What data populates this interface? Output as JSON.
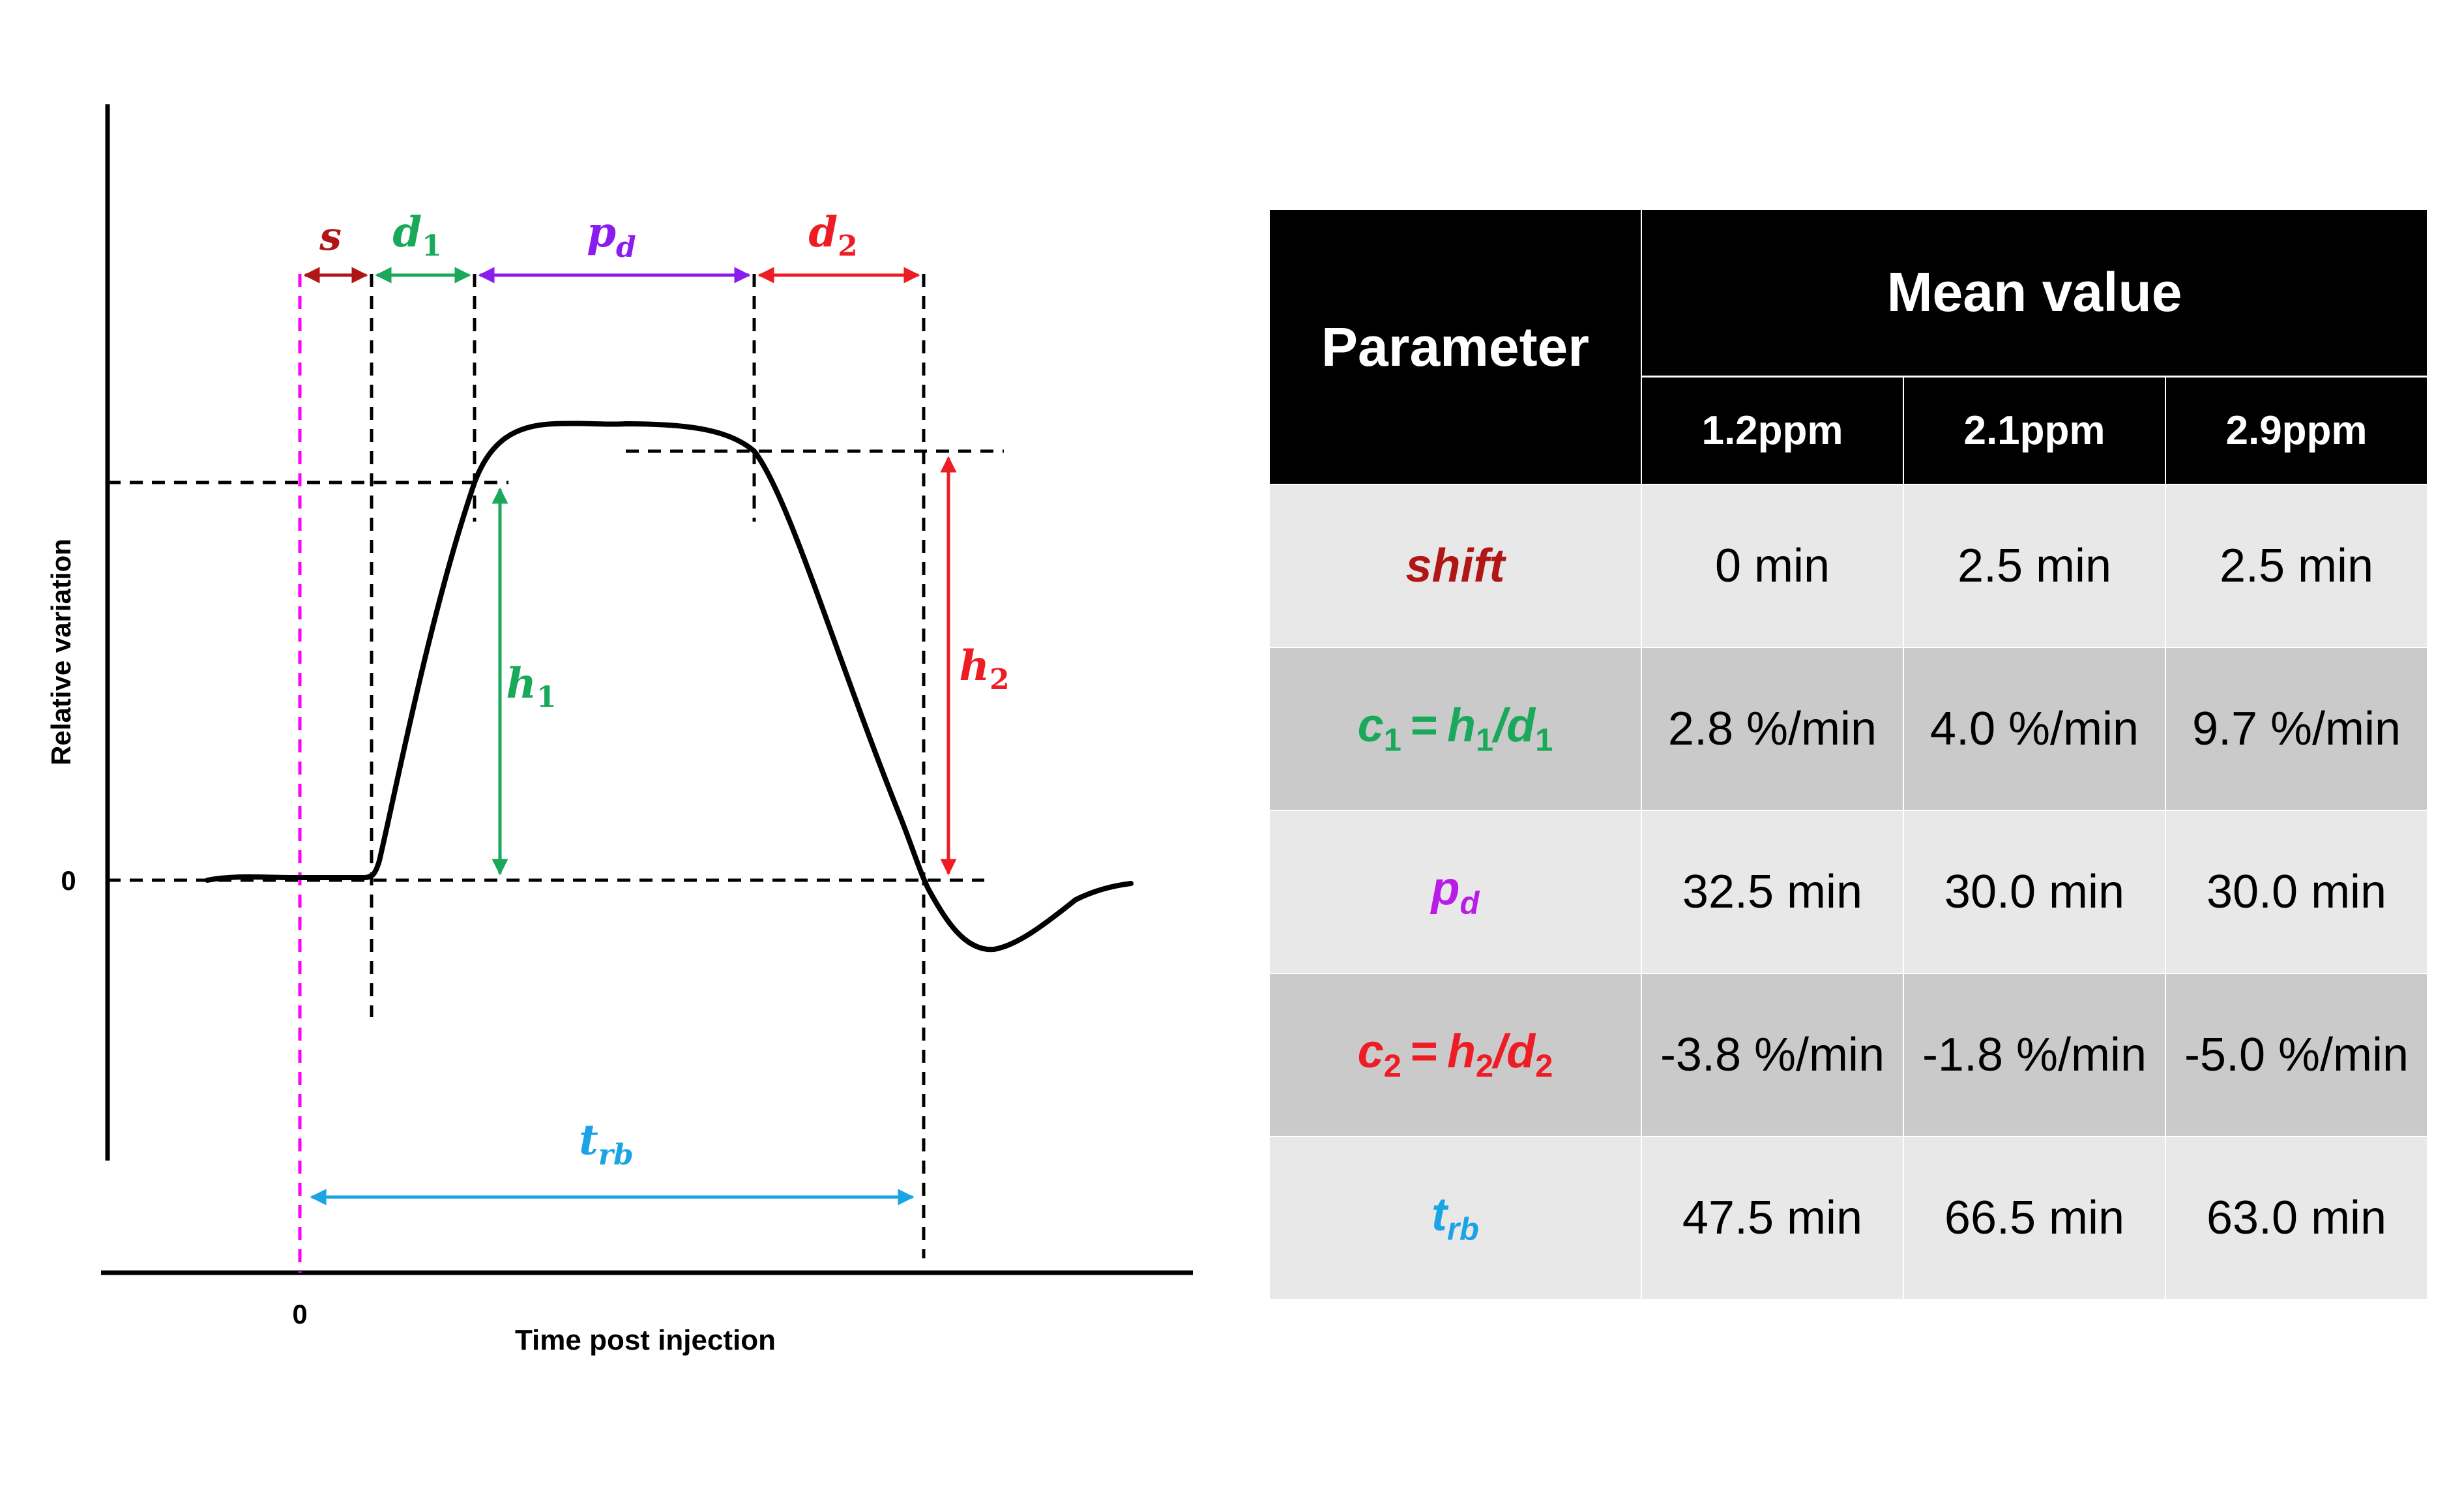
{
  "graph": {
    "ylabel": "Relative variation",
    "xlabel": "Time post injection",
    "y_zero_label": "0",
    "x_zero_label": "0",
    "labels": {
      "s": "s",
      "d1": {
        "main": "d",
        "sub": "1"
      },
      "pd": {
        "main": "p",
        "sub": "d"
      },
      "d2": {
        "main": "d",
        "sub": "2"
      },
      "h1": {
        "main": "h",
        "sub": "1"
      },
      "h2": {
        "main": "h",
        "sub": "2"
      },
      "trb": {
        "main": "t",
        "sub": "rb"
      }
    },
    "colors": {
      "s": "#b01616",
      "d1": "#1aa85a",
      "pd": "#8b1cf0",
      "d2": "#ee1c24",
      "h1": "#1aa85a",
      "h2": "#ee1c24",
      "trb": "#1aa3e6",
      "zero_line": "#ff00ff",
      "curve": "#000000"
    }
  },
  "table": {
    "header": {
      "parameter": "Parameter",
      "mean_value": "Mean value",
      "columns": [
        "1.2ppm",
        "2.1ppm",
        "2.9ppm"
      ]
    },
    "rows": [
      {
        "name": "shift",
        "color": "#b01616",
        "values": [
          "0 min",
          "2.5 min",
          "2.5 min"
        ]
      },
      {
        "name": {
          "lhs": "c",
          "lhs_sub": "1",
          "eq": "=",
          "a": "h",
          "a_sub": "1",
          "slash": "/",
          "b": "d",
          "b_sub": "1"
        },
        "color": "#1aa85a",
        "values": [
          "2.8 %/min",
          "4.0 %/min",
          "9.7 %/min"
        ]
      },
      {
        "name": {
          "main": "p",
          "sub": "d"
        },
        "color": "#b81ce6",
        "values": [
          "32.5 min",
          "30.0 min",
          "30.0 min"
        ]
      },
      {
        "name": {
          "lhs": "c",
          "lhs_sub": "2",
          "eq": "=",
          "a": "h",
          "a_sub": "2",
          "slash": "/",
          "b": "d",
          "b_sub": "2"
        },
        "color": "#ee1c24",
        "values": [
          "-3.8 %/min",
          "-1.8 %/min",
          "-5.0 %/min"
        ]
      },
      {
        "name": {
          "main": "t",
          "sub": "rb"
        },
        "color": "#1aa3e6",
        "values": [
          "47.5 min",
          "66.5 min",
          "63.0 min"
        ]
      }
    ]
  }
}
